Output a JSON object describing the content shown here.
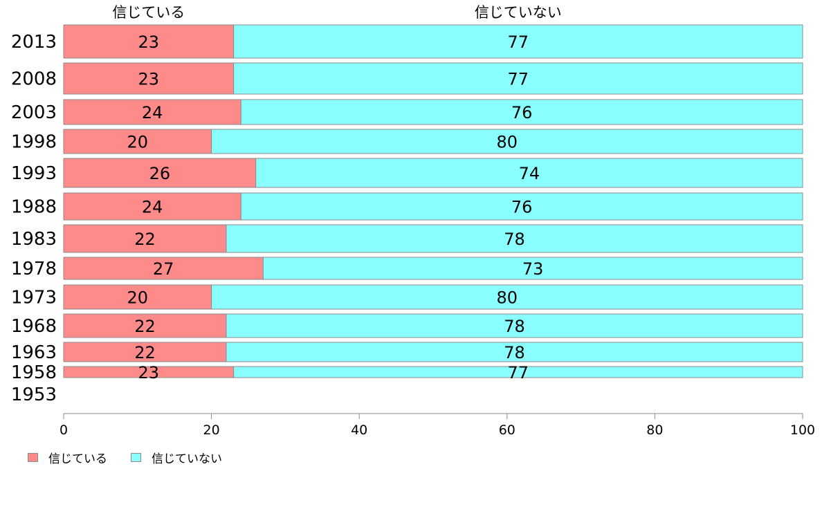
{
  "chart_data": {
    "type": "bar",
    "orientation": "horizontal",
    "stacked": true,
    "categories": [
      "2013",
      "2008",
      "2003",
      "1998",
      "1993",
      "1988",
      "1983",
      "1978",
      "1973",
      "1968",
      "1963",
      "1958",
      "1953"
    ],
    "series": [
      {
        "name": "信じている",
        "color": "#ff8a8a",
        "values": [
          23,
          23,
          24,
          20,
          26,
          24,
          22,
          27,
          20,
          22,
          22,
          23,
          null
        ]
      },
      {
        "name": "信じていない",
        "color": "#8affff",
        "values": [
          77,
          77,
          76,
          80,
          74,
          76,
          78,
          73,
          80,
          78,
          78,
          77,
          null
        ]
      }
    ],
    "xlim": [
      0,
      100
    ],
    "xticks": [
      0,
      20,
      40,
      60,
      80,
      100
    ],
    "grid": false,
    "legend": "bottom-left"
  }
}
